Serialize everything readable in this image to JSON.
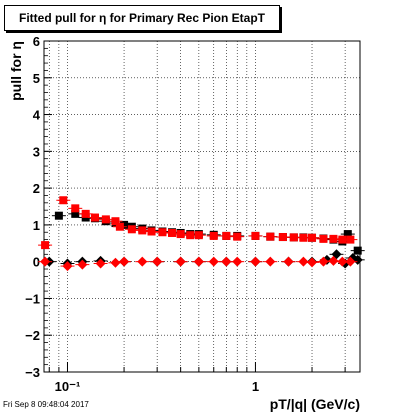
{
  "chart_data": {
    "type": "scatter",
    "title": "Fitted pull for  η for Primary Rec Pion EtapT",
    "xlabel": "pT/|q| (GeV/c)",
    "ylabel": "pull for  η",
    "xscale": "log",
    "xlim": [
      0.075,
      3.6
    ],
    "ylim": [
      -3,
      6
    ],
    "grid": true,
    "legend": "none",
    "xticks": [
      {
        "value": 0.1,
        "label": "10⁻¹"
      },
      {
        "value": 1,
        "label": "1"
      }
    ],
    "yticks": [
      -3,
      -2,
      -1,
      0,
      1,
      2,
      3,
      4,
      5,
      6
    ],
    "series": [
      {
        "role": "sigma",
        "color": "#000000",
        "marker": "square",
        "points": [
          [
            0.09,
            1.25
          ],
          [
            0.11,
            1.3
          ],
          [
            0.125,
            1.2
          ],
          [
            0.14,
            1.18
          ],
          [
            0.16,
            1.1
          ],
          [
            0.18,
            1.05
          ],
          [
            0.2,
            1.0
          ],
          [
            0.22,
            0.95
          ],
          [
            0.25,
            0.9
          ],
          [
            0.28,
            0.85
          ],
          [
            0.32,
            0.82
          ],
          [
            0.36,
            0.8
          ],
          [
            0.4,
            0.78
          ],
          [
            0.45,
            0.75
          ],
          [
            0.5,
            0.75
          ],
          [
            0.6,
            0.73
          ],
          [
            0.7,
            0.7
          ],
          [
            0.8,
            0.7
          ],
          [
            1.0,
            0.7
          ],
          [
            1.2,
            0.68
          ],
          [
            1.4,
            0.67
          ],
          [
            1.6,
            0.66
          ],
          [
            1.8,
            0.66
          ],
          [
            2.0,
            0.65
          ],
          [
            2.3,
            0.63
          ],
          [
            2.6,
            0.6
          ],
          [
            2.9,
            0.55
          ],
          [
            3.1,
            0.75
          ],
          [
            3.5,
            0.3
          ]
        ]
      },
      {
        "role": "mean",
        "color": "#000000",
        "marker": "diamond",
        "points": [
          [
            0.08,
            0.0
          ],
          [
            0.1,
            -0.05
          ],
          [
            0.12,
            0.0
          ],
          [
            0.15,
            0.02
          ],
          [
            0.2,
            0.0
          ],
          [
            0.3,
            0.0
          ],
          [
            0.4,
            0.0
          ],
          [
            0.5,
            0.0
          ],
          [
            0.7,
            0.0
          ],
          [
            1.0,
            0.0
          ],
          [
            1.5,
            0.0
          ],
          [
            2.0,
            0.0
          ],
          [
            2.4,
            0.05
          ],
          [
            2.7,
            0.2
          ],
          [
            3.0,
            -0.05
          ],
          [
            3.3,
            0.1
          ],
          [
            3.5,
            0.05
          ]
        ]
      },
      {
        "role": "sigma",
        "color": "#ff0000",
        "marker": "square",
        "points": [
          [
            0.076,
            0.45
          ],
          [
            0.095,
            1.67
          ],
          [
            0.11,
            1.45
          ],
          [
            0.125,
            1.3
          ],
          [
            0.14,
            1.2
          ],
          [
            0.16,
            1.15
          ],
          [
            0.18,
            1.1
          ],
          [
            0.19,
            0.95
          ],
          [
            0.22,
            0.88
          ],
          [
            0.25,
            0.85
          ],
          [
            0.28,
            0.82
          ],
          [
            0.32,
            0.8
          ],
          [
            0.36,
            0.78
          ],
          [
            0.4,
            0.75
          ],
          [
            0.45,
            0.72
          ],
          [
            0.5,
            0.72
          ],
          [
            0.6,
            0.7
          ],
          [
            0.7,
            0.7
          ],
          [
            0.8,
            0.68
          ],
          [
            1.0,
            0.7
          ],
          [
            1.2,
            0.68
          ],
          [
            1.4,
            0.67
          ],
          [
            1.6,
            0.66
          ],
          [
            1.8,
            0.65
          ],
          [
            2.0,
            0.65
          ],
          [
            2.3,
            0.62
          ],
          [
            2.6,
            0.62
          ],
          [
            2.9,
            0.6
          ],
          [
            3.2,
            0.6
          ]
        ]
      },
      {
        "role": "mean",
        "color": "#ff0000",
        "marker": "diamond",
        "points": [
          [
            0.076,
            0.0
          ],
          [
            0.1,
            -0.12
          ],
          [
            0.12,
            -0.08
          ],
          [
            0.15,
            -0.05
          ],
          [
            0.18,
            -0.03
          ],
          [
            0.2,
            0.0
          ],
          [
            0.25,
            0.0
          ],
          [
            0.3,
            0.0
          ],
          [
            0.4,
            0.0
          ],
          [
            0.5,
            0.0
          ],
          [
            0.6,
            0.0
          ],
          [
            0.7,
            0.0
          ],
          [
            0.8,
            0.0
          ],
          [
            1.0,
            0.0
          ],
          [
            1.2,
            0.0
          ],
          [
            1.5,
            0.0
          ],
          [
            1.8,
            0.0
          ],
          [
            2.0,
            -0.02
          ],
          [
            2.3,
            0.0
          ],
          [
            2.6,
            0.02
          ],
          [
            2.9,
            0.0
          ],
          [
            3.2,
            0.0
          ]
        ]
      }
    ]
  },
  "footer": "Fri Sep  8 09:48:04 2017"
}
